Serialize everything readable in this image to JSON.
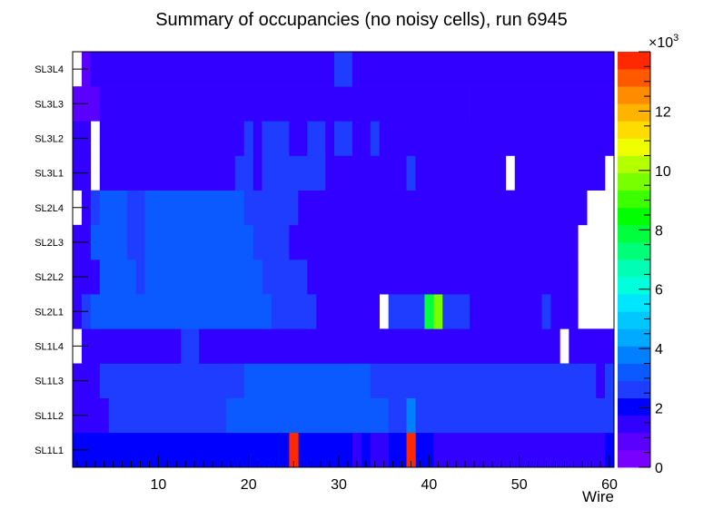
{
  "chart_data": {
    "type": "heatmap",
    "title": "Summary of occupancies (no noisy cells), run 6945",
    "xlabel": "Wire",
    "ylabel": "",
    "xlim": [
      0,
      60
    ],
    "x_ticks": [
      "10",
      "20",
      "30",
      "40",
      "50",
      "60"
    ],
    "y_categories": [
      "SL1L1",
      "SL1L2",
      "SL1L3",
      "SL1L4",
      "SL2L1",
      "SL2L2",
      "SL2L3",
      "SL2L4",
      "SL3L1",
      "SL3L2",
      "SL3L3",
      "SL3L4"
    ],
    "colorbar": {
      "multiplier": "×10",
      "multiplier_exponent": "3",
      "min": 0,
      "max": 14000,
      "tick_labels": [
        "0",
        "2",
        "4",
        "6",
        "8",
        "10",
        "12"
      ],
      "palette": [
        "#7700ff",
        "#5a00ff",
        "#3200ff",
        "#0000ff",
        "#1e3dff",
        "#0a5aff",
        "#0080ff",
        "#00aaff",
        "#00c8ff",
        "#00e6ff",
        "#00ffdc",
        "#00ffb4",
        "#00ff78",
        "#00ff3c",
        "#00ff00",
        "#3cff00",
        "#78ff00",
        "#b4ff00",
        "#f0ff00",
        "#ffdc00",
        "#ffb400",
        "#ff8c00",
        "#ff5a00",
        "#ff2800"
      ]
    },
    "segments": [
      [
        [
          0,
          60,
          1800
        ],
        [
          24,
          25,
          13500
        ],
        [
          37,
          38,
          13500
        ],
        [
          31,
          32,
          1200
        ],
        [
          33,
          35,
          1200
        ],
        [
          40,
          56,
          1200
        ],
        [
          56,
          59,
          1500
        ],
        [
          59,
          60,
          0
        ]
      ],
      [
        [
          0,
          4,
          1600
        ],
        [
          4,
          17,
          2600
        ],
        [
          17,
          35,
          3200
        ],
        [
          35,
          37,
          2600
        ],
        [
          37,
          38,
          3600
        ],
        [
          38,
          60,
          2600
        ]
      ],
      [
        [
          0,
          3,
          1700
        ],
        [
          3,
          19,
          2600
        ],
        [
          19,
          33,
          3200
        ],
        [
          33,
          58,
          2600
        ],
        [
          58,
          59,
          1700
        ],
        [
          59,
          60,
          2600
        ]
      ],
      [
        [
          0,
          1,
          0
        ],
        [
          1,
          4,
          1200
        ],
        [
          4,
          12,
          1700
        ],
        [
          12,
          14,
          2600
        ],
        [
          14,
          49,
          1700
        ],
        [
          49,
          54,
          1200
        ],
        [
          54,
          55,
          0
        ],
        [
          55,
          56,
          1200
        ],
        [
          56,
          60,
          1700
        ]
      ],
      [
        [
          0,
          1,
          1700
        ],
        [
          1,
          2,
          2600
        ],
        [
          2,
          22,
          3200
        ],
        [
          22,
          27,
          2600
        ],
        [
          27,
          34,
          1700
        ],
        [
          34,
          35,
          0
        ],
        [
          35,
          39,
          2600
        ],
        [
          39,
          40,
          7800
        ],
        [
          40,
          41,
          9600
        ],
        [
          41,
          44,
          2600
        ],
        [
          44,
          52,
          1700
        ],
        [
          52,
          53,
          2600
        ],
        [
          53,
          56,
          1700
        ],
        [
          56,
          60,
          0
        ]
      ],
      [
        [
          0,
          1,
          1200
        ],
        [
          1,
          3,
          1700
        ],
        [
          3,
          7,
          3200
        ],
        [
          7,
          8,
          2600
        ],
        [
          8,
          21,
          3200
        ],
        [
          21,
          26,
          2600
        ],
        [
          26,
          56,
          1700
        ],
        [
          56,
          60,
          0
        ]
      ],
      [
        [
          0,
          2,
          1700
        ],
        [
          2,
          6,
          3200
        ],
        [
          6,
          8,
          2600
        ],
        [
          8,
          20,
          3200
        ],
        [
          20,
          24,
          2600
        ],
        [
          24,
          55,
          1700
        ],
        [
          55,
          56,
          1200
        ],
        [
          56,
          60,
          0
        ]
      ],
      [
        [
          0,
          1,
          0
        ],
        [
          1,
          2,
          1700
        ],
        [
          2,
          3,
          2600
        ],
        [
          3,
          6,
          3200
        ],
        [
          6,
          8,
          2600
        ],
        [
          8,
          19,
          3200
        ],
        [
          19,
          25,
          2600
        ],
        [
          25,
          56,
          1700
        ],
        [
          56,
          57,
          1200
        ],
        [
          57,
          60,
          0
        ]
      ],
      [
        [
          0,
          1,
          1200
        ],
        [
          1,
          2,
          1500
        ],
        [
          2,
          3,
          0
        ],
        [
          3,
          18,
          1700
        ],
        [
          18,
          20,
          2600
        ],
        [
          20,
          21,
          1700
        ],
        [
          21,
          28,
          2600
        ],
        [
          28,
          33,
          1700
        ],
        [
          33,
          36,
          1200
        ],
        [
          36,
          37,
          1700
        ],
        [
          37,
          38,
          2600
        ],
        [
          38,
          48,
          1700
        ],
        [
          48,
          49,
          0
        ],
        [
          49,
          57,
          1700
        ],
        [
          57,
          59,
          1200
        ],
        [
          59,
          60,
          0
        ]
      ],
      [
        [
          0,
          1,
          1200
        ],
        [
          1,
          2,
          1500
        ],
        [
          2,
          3,
          0
        ],
        [
          3,
          4,
          1200
        ],
        [
          4,
          19,
          1700
        ],
        [
          19,
          20,
          2600
        ],
        [
          20,
          21,
          1700
        ],
        [
          21,
          24,
          2600
        ],
        [
          24,
          26,
          1700
        ],
        [
          26,
          28,
          2600
        ],
        [
          28,
          29,
          1700
        ],
        [
          29,
          31,
          2600
        ],
        [
          31,
          33,
          1700
        ],
        [
          33,
          34,
          2600
        ],
        [
          34,
          57,
          1700
        ],
        [
          57,
          60,
          1200
        ]
      ],
      [
        [
          0,
          3,
          600
        ],
        [
          3,
          44,
          1700
        ],
        [
          44,
          45,
          1200
        ],
        [
          45,
          57,
          1700
        ],
        [
          57,
          60,
          1200
        ]
      ],
      [
        [
          0,
          1,
          0
        ],
        [
          1,
          2,
          800
        ],
        [
          2,
          3,
          1200
        ],
        [
          3,
          29,
          1700
        ],
        [
          29,
          31,
          2600
        ],
        [
          31,
          57,
          1700
        ],
        [
          57,
          60,
          1200
        ]
      ]
    ]
  }
}
